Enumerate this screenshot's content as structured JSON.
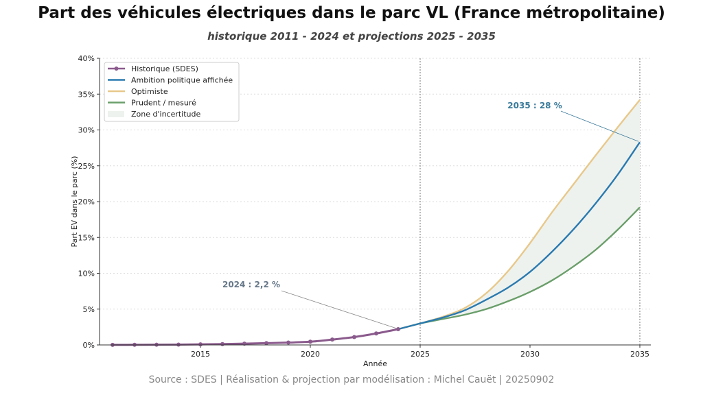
{
  "chart_data": {
    "type": "line",
    "title": "Part des véhicules électriques dans le parc VL (France métropolitaine)",
    "subtitle": "historique 2011 - 2024 et projections 2025 - 2035",
    "xlabel": "Année",
    "ylabel": "Part EV dans le parc (%)",
    "xlim": [
      2010.4,
      2035.5
    ],
    "ylim": [
      0,
      40
    ],
    "xticks": [
      2015,
      2020,
      2025,
      2030,
      2035
    ],
    "yticks": [
      0,
      5,
      10,
      15,
      20,
      25,
      30,
      35,
      40
    ],
    "ytick_labels": [
      "0%",
      "5%",
      "10%",
      "15%",
      "20%",
      "25%",
      "30%",
      "35%",
      "40%"
    ],
    "grid": "horizontal dotted",
    "legend": "top-left",
    "vlines": [
      2025,
      2035
    ],
    "series": [
      {
        "name": "Historique (SDES)",
        "color": "#8a5a8c",
        "markers": true,
        "x": [
          2011,
          2012,
          2013,
          2014,
          2015,
          2016,
          2017,
          2018,
          2019,
          2020,
          2021,
          2022,
          2023,
          2024
        ],
        "values": [
          0.01,
          0.02,
          0.03,
          0.05,
          0.08,
          0.12,
          0.18,
          0.25,
          0.33,
          0.45,
          0.75,
          1.1,
          1.6,
          2.2
        ]
      },
      {
        "name": "Ambition politique affichée",
        "color": "#2a7ab0",
        "x": [
          2024,
          2025,
          2026,
          2027,
          2028,
          2029,
          2030,
          2031,
          2032,
          2033,
          2034,
          2035
        ],
        "values": [
          2.2,
          3.0,
          3.8,
          4.8,
          6.3,
          8.0,
          10.2,
          13.0,
          16.2,
          19.8,
          23.8,
          28.3
        ]
      },
      {
        "name": "Optimiste",
        "color": "#e8c88a",
        "x": [
          2024,
          2025,
          2026,
          2027,
          2028,
          2029,
          2030,
          2031,
          2032,
          2033,
          2034,
          2035
        ],
        "values": [
          2.2,
          3.0,
          3.9,
          5.1,
          7.2,
          10.3,
          14.2,
          18.5,
          22.5,
          26.5,
          30.4,
          34.2
        ]
      },
      {
        "name": "Prudent / mesuré",
        "color": "#6a9e6a",
        "x": [
          2024,
          2025,
          2026,
          2027,
          2028,
          2029,
          2030,
          2031,
          2032,
          2033,
          2034,
          2035
        ],
        "values": [
          2.2,
          3.0,
          3.6,
          4.2,
          5.0,
          6.1,
          7.4,
          9.0,
          11.0,
          13.3,
          16.1,
          19.2
        ]
      }
    ],
    "band": {
      "name": "Zone d'incertitude",
      "color": "#eef2ee"
    },
    "annotations": [
      {
        "text": "2024 : 2,2 %",
        "x": 2024,
        "y": 2.2,
        "color": "#667788"
      },
      {
        "text": "2035 : 28 %",
        "x": 2035,
        "y": 28.3,
        "color": "#3a7a9a"
      }
    ]
  },
  "source": "Source : SDES  | Réalisation & projection par modélisation : Michel Cauët | 20250902"
}
